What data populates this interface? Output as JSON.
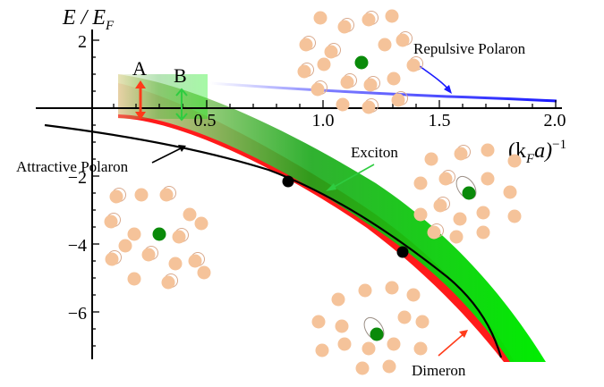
{
  "axes": {
    "y_label_top": "E / E",
    "y_label_sub": "F",
    "x_label_main": "(k",
    "x_label_sub": "F",
    "x_label_tail": "a)",
    "x_label_sup": "−1",
    "x_ticks": [
      "0.5",
      "1.0",
      "1.5",
      "2.0"
    ],
    "y_ticks": [
      "2",
      "−2",
      "−4",
      "−6"
    ]
  },
  "labels": {
    "repulsive": "Repulsive Polaron",
    "attractive": "Attractive Polaron",
    "exciton": "Exciton",
    "dimeron": "Dimeron",
    "a": "A",
    "b": "B"
  },
  "colors": {
    "repulsive_line": "#1a1aff",
    "exciton_band": "#00ee00",
    "dimeron_band": "#ff1a1a",
    "arrow_a": "#ff3b1a",
    "arrow_b": "#2ecc40",
    "impurity": "#0a8a0a",
    "fermion": "#f5c39a"
  }
}
